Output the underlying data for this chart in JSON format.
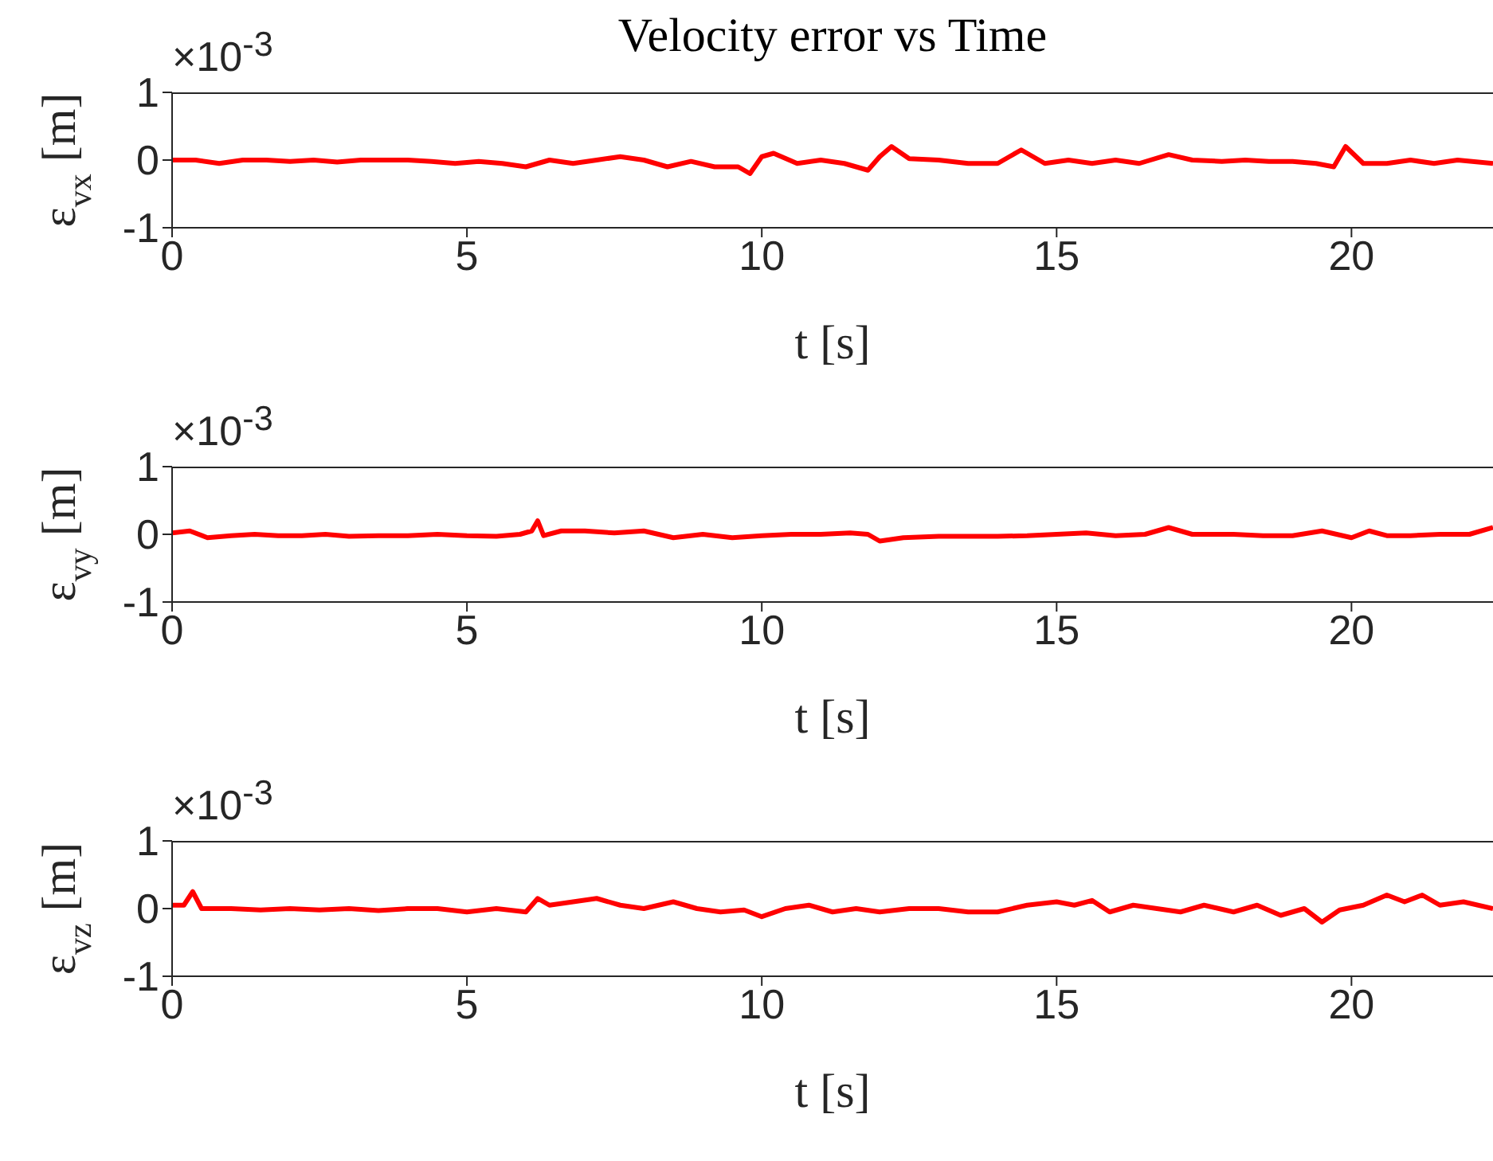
{
  "chart_data": [
    {
      "type": "line",
      "title": "Velocity error vs Time",
      "xlabel": "t [s]",
      "ylabel": "ε$_{vx}$ [m]",
      "annotations": [
        "×10$^{-3}$"
      ],
      "xlim": [
        0,
        22.4
      ],
      "xticks": [
        0,
        5,
        10,
        15,
        20
      ],
      "ylim": [
        -1,
        1
      ],
      "yticks": [
        -1,
        0,
        1
      ],
      "marker": "none",
      "line_style": "solid",
      "x": [
        0,
        0.4,
        0.8,
        1.2,
        1.6,
        2.0,
        2.4,
        2.8,
        3.2,
        3.6,
        4.0,
        4.4,
        4.8,
        5.2,
        5.6,
        6.0,
        6.4,
        6.8,
        7.2,
        7.6,
        8.0,
        8.4,
        8.8,
        9.2,
        9.6,
        9.8,
        10.0,
        10.2,
        10.6,
        11.0,
        11.4,
        11.8,
        12.0,
        12.2,
        12.5,
        13.0,
        13.5,
        14.0,
        14.4,
        14.8,
        15.2,
        15.6,
        16.0,
        16.4,
        16.9,
        17.3,
        17.8,
        18.2,
        18.6,
        19.0,
        19.4,
        19.7,
        19.9,
        20.2,
        20.6,
        21.0,
        21.4,
        21.8,
        22.4
      ],
      "series": [
        {
          "color": "#ff0000",
          "values": [
            0,
            0,
            -0.05,
            0,
            0,
            -0.02,
            0,
            -0.03,
            0,
            0,
            0,
            -0.02,
            -0.05,
            -0.02,
            -0.05,
            -0.1,
            0,
            -0.05,
            0,
            0.05,
            0,
            -0.1,
            -0.02,
            -0.1,
            -0.1,
            -0.2,
            0.05,
            0.1,
            -0.05,
            0,
            -0.05,
            -0.15,
            0.05,
            0.2,
            0.02,
            0,
            -0.05,
            -0.05,
            0.15,
            -0.05,
            0,
            -0.05,
            0,
            -0.05,
            0.08,
            0,
            -0.02,
            0,
            -0.02,
            -0.02,
            -0.05,
            -0.1,
            0.2,
            -0.05,
            -0.05,
            0,
            -0.05,
            0,
            -0.05
          ]
        }
      ]
    },
    {
      "type": "line",
      "xlabel": "t [s]",
      "ylabel": "ε$_{vy}$ [m]",
      "annotations": [
        "×10$^{-3}$"
      ],
      "xlim": [
        0,
        22.4
      ],
      "xticks": [
        0,
        5,
        10,
        15,
        20
      ],
      "ylim": [
        -1,
        1
      ],
      "yticks": [
        -1,
        0,
        1
      ],
      "marker": "none",
      "line_style": "solid",
      "x": [
        0,
        0.3,
        0.6,
        1.0,
        1.4,
        1.8,
        2.2,
        2.6,
        3.0,
        3.5,
        4.0,
        4.5,
        5.0,
        5.5,
        5.9,
        6.1,
        6.2,
        6.3,
        6.6,
        7.0,
        7.5,
        8.0,
        8.5,
        9.0,
        9.5,
        10.0,
        10.5,
        11.0,
        11.5,
        11.8,
        12.0,
        12.4,
        13.0,
        13.5,
        14.0,
        14.5,
        15.0,
        15.5,
        16.0,
        16.5,
        16.9,
        17.3,
        18.0,
        18.5,
        19.0,
        19.5,
        20.0,
        20.3,
        20.6,
        21.0,
        21.5,
        22.0,
        22.4
      ],
      "series": [
        {
          "color": "#ff0000",
          "values": [
            0.02,
            0.05,
            -0.05,
            -0.02,
            0,
            -0.02,
            -0.02,
            0,
            -0.03,
            -0.02,
            -0.02,
            0,
            -0.02,
            -0.03,
            0,
            0.05,
            0.2,
            -0.02,
            0.05,
            0.05,
            0.02,
            0.05,
            -0.05,
            0,
            -0.05,
            -0.02,
            0,
            0,
            0.02,
            0,
            -0.1,
            -0.05,
            -0.03,
            -0.03,
            -0.03,
            -0.02,
            0,
            0.02,
            -0.02,
            0,
            0.1,
            0,
            0,
            -0.02,
            -0.02,
            0.05,
            -0.05,
            0.05,
            -0.02,
            -0.02,
            0,
            0,
            0.1
          ]
        }
      ]
    },
    {
      "type": "line",
      "xlabel": "t [s]",
      "ylabel": "ε$_{vz}$ [m]",
      "annotations": [
        "×10$^{-3}$"
      ],
      "xlim": [
        0,
        22.4
      ],
      "xticks": [
        0,
        5,
        10,
        15,
        20
      ],
      "ylim": [
        -1,
        1
      ],
      "yticks": [
        -1,
        0,
        1
      ],
      "marker": "none",
      "line_style": "solid",
      "x": [
        0,
        0.2,
        0.35,
        0.5,
        1.0,
        1.5,
        2.0,
        2.5,
        3.0,
        3.5,
        4.0,
        4.5,
        5.0,
        5.5,
        6.0,
        6.2,
        6.4,
        6.8,
        7.2,
        7.6,
        8.0,
        8.5,
        8.9,
        9.3,
        9.7,
        10.0,
        10.4,
        10.8,
        11.2,
        11.6,
        12.0,
        12.5,
        13.0,
        13.5,
        14.0,
        14.5,
        15.0,
        15.3,
        15.6,
        15.9,
        16.3,
        16.7,
        17.1,
        17.5,
        18.0,
        18.4,
        18.8,
        19.2,
        19.5,
        19.8,
        20.2,
        20.6,
        20.9,
        21.2,
        21.5,
        21.9,
        22.4
      ],
      "series": [
        {
          "color": "#ff0000",
          "values": [
            0.05,
            0.05,
            0.25,
            0,
            0,
            -0.02,
            0,
            -0.02,
            0,
            -0.03,
            0,
            0,
            -0.05,
            0,
            -0.05,
            0.15,
            0.05,
            0.1,
            0.15,
            0.05,
            0,
            0.1,
            0,
            -0.05,
            -0.02,
            -0.12,
            0,
            0.05,
            -0.05,
            0,
            -0.05,
            0,
            0,
            -0.05,
            -0.05,
            0.05,
            0.1,
            0.05,
            0.12,
            -0.05,
            0.05,
            0,
            -0.05,
            0.05,
            -0.05,
            0.05,
            -0.1,
            0,
            -0.2,
            -0.02,
            0.05,
            0.2,
            0.1,
            0.2,
            0.05,
            0.1,
            0
          ]
        }
      ]
    }
  ]
}
